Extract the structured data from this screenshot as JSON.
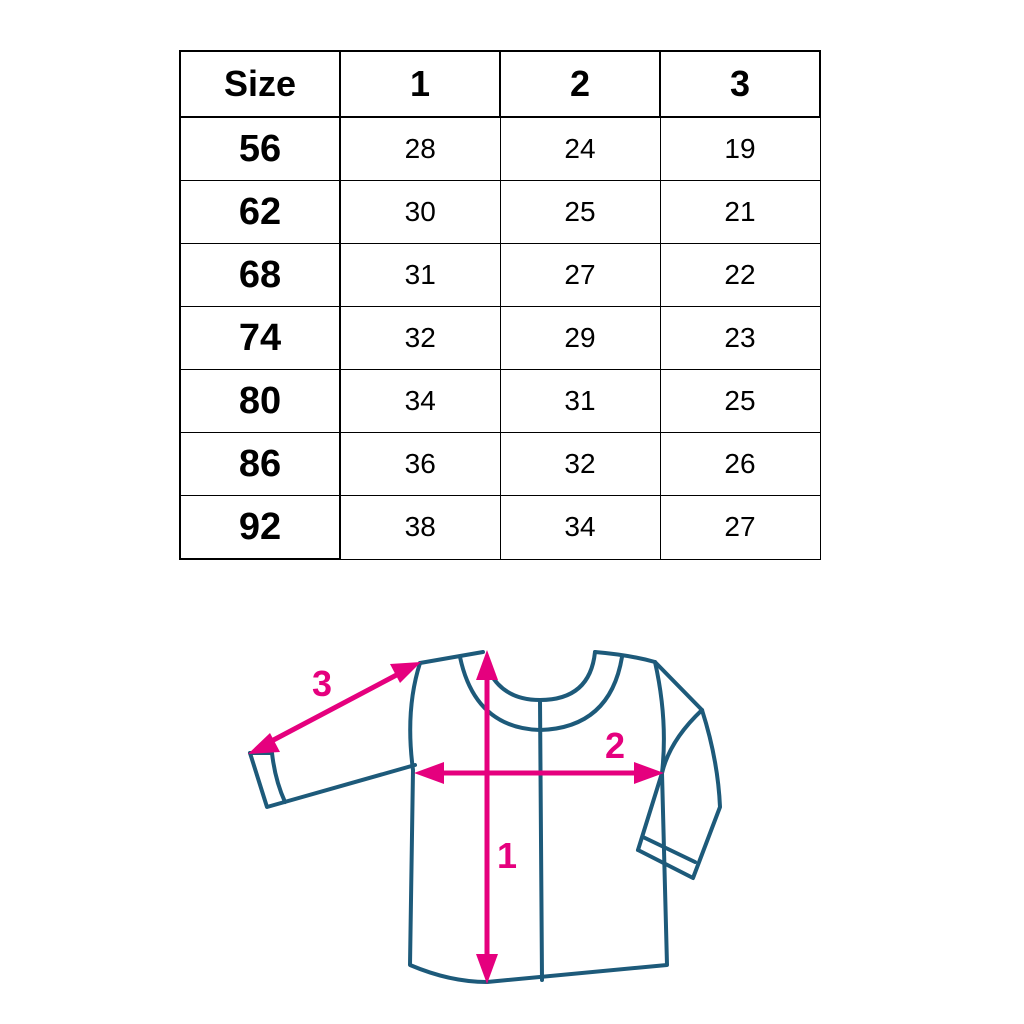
{
  "table": {
    "headers": [
      "Size",
      "1",
      "2",
      "3"
    ],
    "rows": [
      {
        "size": "56",
        "values": [
          "28",
          "24",
          "19"
        ]
      },
      {
        "size": "62",
        "values": [
          "30",
          "25",
          "21"
        ]
      },
      {
        "size": "68",
        "values": [
          "31",
          "27",
          "22"
        ]
      },
      {
        "size": "74",
        "values": [
          "32",
          "29",
          "23"
        ]
      },
      {
        "size": "80",
        "values": [
          "34",
          "31",
          "25"
        ]
      },
      {
        "size": "86",
        "values": [
          "36",
          "32",
          "26"
        ]
      },
      {
        "size": "92",
        "values": [
          "38",
          "34",
          "27"
        ]
      }
    ]
  },
  "diagram": {
    "labels": {
      "length": "1",
      "chest": "2",
      "sleeve": "3"
    },
    "colors": {
      "outline": "#1d5a7a",
      "arrow": "#e5007e"
    }
  }
}
